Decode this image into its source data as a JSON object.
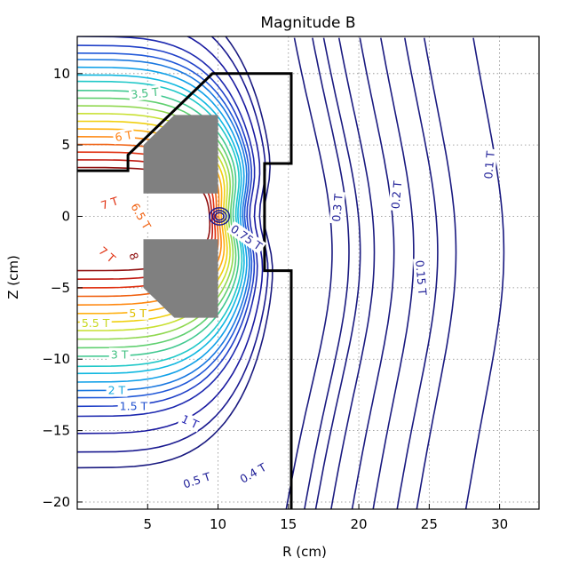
{
  "chart_data": {
    "type": "contour",
    "title": "Magnitude B",
    "xlabel": "R (cm)",
    "ylabel": "Z (cm)",
    "xlim": [
      0,
      32.8
    ],
    "ylim": [
      -20.5,
      12.6
    ],
    "grid": true,
    "xticks": [
      5,
      10,
      15,
      20,
      25,
      30
    ],
    "yticks": [
      10,
      5,
      0,
      -5,
      -10,
      -15,
      -20
    ],
    "contour_labels": [
      {
        "text": "3.5 T",
        "r": 4.8,
        "z": 8.6,
        "color": "#40c080",
        "rot": -6
      },
      {
        "text": "6 T",
        "r": 3.3,
        "z": 5.6,
        "color": "#ff8010",
        "rot": -10
      },
      {
        "text": "7 T",
        "r": 2.3,
        "z": 0.9,
        "color": "#e03010",
        "rot": -18
      },
      {
        "text": "6.5 T",
        "r": 4.5,
        "z": 0.0,
        "color": "#f06010",
        "rot": 60
      },
      {
        "text": "7 T",
        "r": 2.1,
        "z": -2.7,
        "color": "#e03010",
        "rot": 40
      },
      {
        "text": "8",
        "r": 4.0,
        "z": -2.8,
        "color": "#901010",
        "rot": 70
      },
      {
        "text": "0.75 T",
        "r": 12.0,
        "z": -1.5,
        "color": "#202098",
        "rot": 35
      },
      {
        "text": "0.3 T",
        "r": 18.5,
        "z": 0.6,
        "color": "#202098",
        "rot": -85
      },
      {
        "text": "0.2 T",
        "r": 22.7,
        "z": 1.5,
        "color": "#202098",
        "rot": -85
      },
      {
        "text": "0.15 T",
        "r": 24.4,
        "z": -4.3,
        "color": "#202098",
        "rot": 85
      },
      {
        "text": "0.1 T",
        "r": 29.3,
        "z": 3.6,
        "color": "#202098",
        "rot": -85
      },
      {
        "text": "5 T",
        "r": 4.3,
        "z": -6.8,
        "color": "#e0c000",
        "rot": 0
      },
      {
        "text": "5.5 T",
        "r": 1.3,
        "z": -7.5,
        "color": "#c8d820",
        "rot": 0
      },
      {
        "text": "3 T",
        "r": 3.0,
        "z": -9.7,
        "color": "#40c080",
        "rot": 0
      },
      {
        "text": "2 T",
        "r": 2.8,
        "z": -12.2,
        "color": "#10a8e0",
        "rot": 0
      },
      {
        "text": "1.5 T",
        "r": 4.0,
        "z": -13.3,
        "color": "#2050d0",
        "rot": 0
      },
      {
        "text": "1 T",
        "r": 8.0,
        "z": -14.4,
        "color": "#2020b0",
        "rot": 25
      },
      {
        "text": "0.5 T",
        "r": 8.5,
        "z": -18.5,
        "color": "#202098",
        "rot": -18
      },
      {
        "text": "0.4 T",
        "r": 12.5,
        "z": -18.0,
        "color": "#202098",
        "rot": -30
      }
    ],
    "contour_levels": [
      {
        "value": 0.1,
        "color": "#1a1a80",
        "kind": "arc",
        "r0": 28.8,
        "bulge": 1.5
      },
      {
        "value": 0.12,
        "color": "#1a1a80",
        "kind": "arc",
        "r0": 25.3,
        "bulge": 1.6
      },
      {
        "value": 0.15,
        "color": "#1a1a80",
        "kind": "arc",
        "r0": 23.9,
        "bulge": 1.7
      },
      {
        "value": 0.17,
        "color": "#1a1a80",
        "kind": "arc",
        "r0": 22.2,
        "bulge": 1.7
      },
      {
        "value": 0.2,
        "color": "#1a1a80",
        "kind": "arc",
        "r0": 20.7,
        "bulge": 1.8
      },
      {
        "value": 0.25,
        "color": "#1a1a80",
        "kind": "arc",
        "r0": 19.2,
        "bulge": 1.9
      },
      {
        "value": 0.3,
        "color": "#1a1a80",
        "kind": "arc",
        "r0": 18.1,
        "bulge": 2.0
      },
      {
        "value": 0.35,
        "color": "#1a1a80",
        "kind": "arc",
        "r0": 17.3,
        "bulge": 2.0
      },
      {
        "value": 0.4,
        "color": "#1a1a80",
        "kind": "arc",
        "r0": 16.0,
        "bulge": 2.1
      },
      {
        "value": 0.5,
        "color": "#1a1a80",
        "kind": "loop",
        "z0": -17.6
      },
      {
        "value": 0.6,
        "color": "#1a1a90",
        "kind": "loop",
        "z0": -16.5
      },
      {
        "value": 0.75,
        "color": "#1a1aa0",
        "kind": "loop",
        "z0": -15.2
      },
      {
        "value": 1.0,
        "color": "#1e2ab0",
        "kind": "loop",
        "z0": -14.0
      },
      {
        "value": 1.25,
        "color": "#2040c8",
        "kind": "loop",
        "z0": -13.3
      },
      {
        "value": 1.5,
        "color": "#2058d8",
        "kind": "loop",
        "z0": -12.7
      },
      {
        "value": 1.75,
        "color": "#1a78e0",
        "kind": "loop",
        "z0": -12.2
      },
      {
        "value": 2.0,
        "color": "#10a0e8",
        "kind": "loop",
        "z0": -11.6
      },
      {
        "value": 2.25,
        "color": "#10b8e0",
        "kind": "loop",
        "z0": -11.0
      },
      {
        "value": 2.5,
        "color": "#20c8c8",
        "kind": "loop",
        "z0": -10.5
      },
      {
        "value": 3.0,
        "color": "#40c890",
        "kind": "loop",
        "z0": -9.8
      },
      {
        "value": 3.5,
        "color": "#60d070",
        "kind": "loop",
        "z0": -9.2
      },
      {
        "value": 4.0,
        "color": "#90d850",
        "kind": "loop",
        "z0": -8.6
      },
      {
        "value": 4.5,
        "color": "#c8e030",
        "kind": "loop",
        "z0": -8.0
      },
      {
        "value": 5.0,
        "color": "#f0d010",
        "kind": "loop",
        "z0": -7.4
      },
      {
        "value": 5.5,
        "color": "#ffb010",
        "kind": "loop",
        "z0": -6.8
      },
      {
        "value": 6.0,
        "color": "#ff8810",
        "kind": "loop",
        "z0": -6.2
      },
      {
        "value": 6.5,
        "color": "#f06010",
        "kind": "loop",
        "z0": -5.6
      },
      {
        "value": 7.0,
        "color": "#e03010",
        "kind": "loop",
        "z0": -5.0
      },
      {
        "value": 7.5,
        "color": "#c01810",
        "kind": "loop",
        "z0": -4.4
      },
      {
        "value": 8.0,
        "color": "#901010",
        "kind": "loop",
        "z0": -3.8
      }
    ],
    "magnets": [
      {
        "name": "upper-coil",
        "points": [
          [
            4.7,
            1.6
          ],
          [
            4.7,
            5.0
          ],
          [
            6.9,
            7.1
          ],
          [
            10.0,
            7.1
          ],
          [
            10.0,
            1.6
          ]
        ]
      },
      {
        "name": "lower-coil",
        "points": [
          [
            4.7,
            -1.6
          ],
          [
            4.7,
            -5.0
          ],
          [
            6.9,
            -7.1
          ],
          [
            10.0,
            -7.1
          ],
          [
            10.0,
            -1.6
          ]
        ]
      }
    ],
    "boundary": [
      [
        0,
        3.2
      ],
      [
        3.6,
        3.2
      ],
      [
        3.6,
        4.3
      ],
      [
        9.6,
        10.0
      ],
      [
        15.2,
        10.0
      ],
      [
        15.2,
        3.7
      ],
      [
        13.3,
        3.7
      ],
      [
        13.3,
        -3.8
      ],
      [
        15.2,
        -3.8
      ],
      [
        15.2,
        -20.5
      ]
    ],
    "colors": {
      "magnet": "#808080",
      "boundary": "#000000"
    }
  }
}
